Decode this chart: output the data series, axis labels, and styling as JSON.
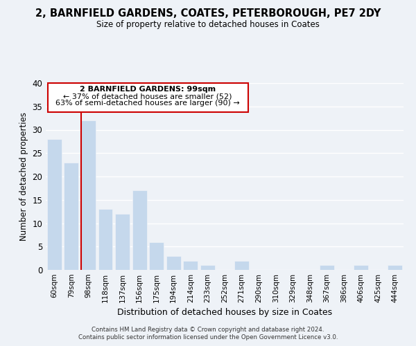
{
  "title": "2, BARNFIELD GARDENS, COATES, PETERBOROUGH, PE7 2DY",
  "subtitle": "Size of property relative to detached houses in Coates",
  "xlabel": "Distribution of detached houses by size in Coates",
  "ylabel": "Number of detached properties",
  "bar_labels": [
    "60sqm",
    "79sqm",
    "98sqm",
    "118sqm",
    "137sqm",
    "156sqm",
    "175sqm",
    "194sqm",
    "214sqm",
    "233sqm",
    "252sqm",
    "271sqm",
    "290sqm",
    "310sqm",
    "329sqm",
    "348sqm",
    "367sqm",
    "386sqm",
    "406sqm",
    "425sqm",
    "444sqm"
  ],
  "bar_values": [
    28,
    23,
    32,
    13,
    12,
    17,
    6,
    3,
    2,
    1,
    0,
    2,
    0,
    0,
    0,
    0,
    1,
    0,
    1,
    0,
    1
  ],
  "red_line_bar_index": 2,
  "ylim": [
    0,
    40
  ],
  "annotation_title": "2 BARNFIELD GARDENS: 99sqm",
  "annotation_line1": "← 37% of detached houses are smaller (52)",
  "annotation_line2": "63% of semi-detached houses are larger (90) →",
  "footer1": "Contains HM Land Registry data © Crown copyright and database right 2024.",
  "footer2": "Contains public sector information licensed under the Open Government Licence v3.0.",
  "bg_color": "#eef2f7",
  "bar_color": "#c5d8ec",
  "grid_color": "#ffffff",
  "red_color": "#cc0000"
}
